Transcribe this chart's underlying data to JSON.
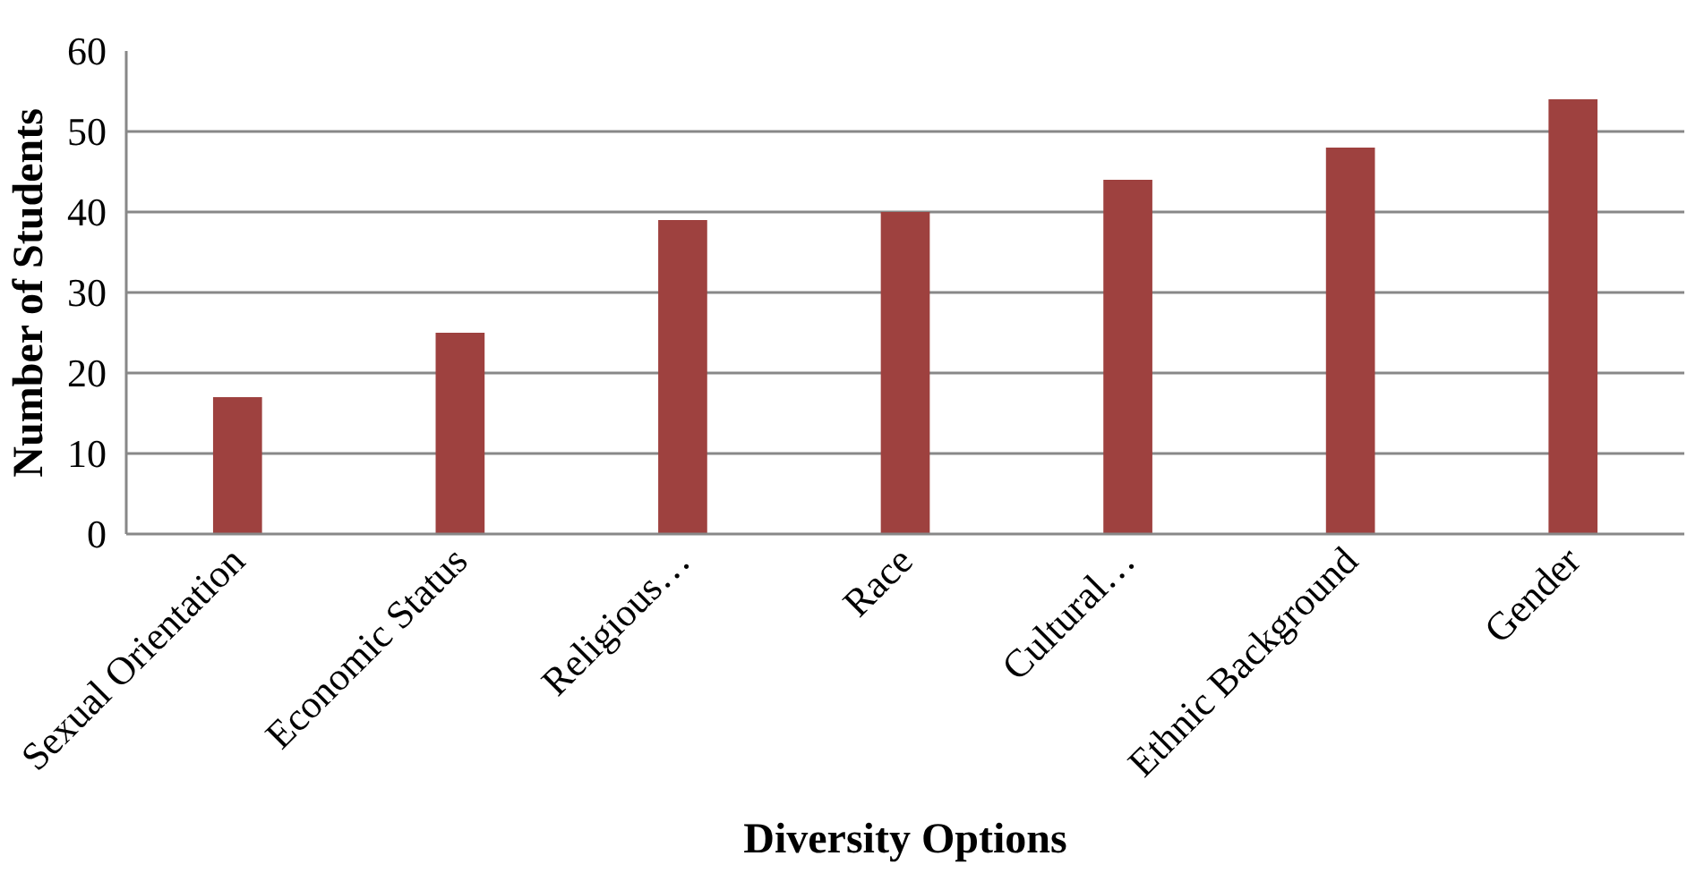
{
  "chart_data": {
    "type": "bar",
    "xlabel": "Diversity Options",
    "ylabel": "Number of Students",
    "categories": [
      "Sexual Orientation",
      "Economic Status",
      "Religious…",
      "Race",
      "Cultural…",
      "Ethnic Background",
      "Gender"
    ],
    "values": [
      17,
      25,
      39,
      40,
      44,
      48,
      54
    ],
    "color": "#9e413f",
    "ylim": [
      0,
      60
    ],
    "yticks": [
      0,
      10,
      20,
      30,
      40,
      50,
      60
    ],
    "grid": "y"
  }
}
